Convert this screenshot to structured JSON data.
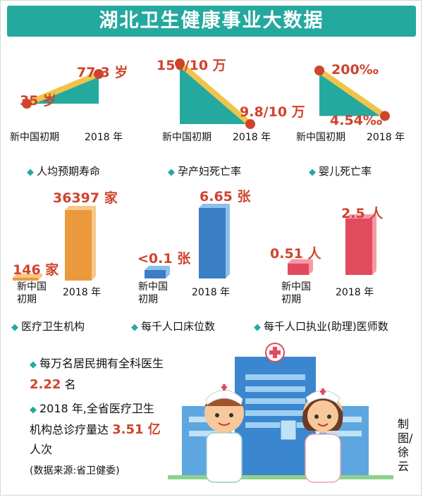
{
  "title": "湖北卫生健康事业大数据",
  "colors": {
    "teal": "#25a99f",
    "red": "#d0432d",
    "orange": "#ea9a3c",
    "blue": "#3a7fc4",
    "pink": "#e24a5e",
    "yellow": "#f0c44a"
  },
  "chart_data": [
    {
      "type": "line",
      "name": "人均预期寿命",
      "categories": [
        "新中国初期",
        "2018 年"
      ],
      "values": [
        35,
        77.3
      ],
      "value_labels": [
        "35 岁",
        "77.3 岁"
      ]
    },
    {
      "type": "line",
      "name": "孕产妇死亡率",
      "categories": [
        "新中国初期",
        "2018 年"
      ],
      "values": [
        150,
        9.8
      ],
      "value_labels": [
        "150/10 万",
        "9.8/10 万"
      ]
    },
    {
      "type": "line",
      "name": "婴儿死亡率",
      "categories": [
        "新中国初期",
        "2018 年"
      ],
      "values": [
        200,
        4.54
      ],
      "value_labels": [
        "200‰",
        "4.54‰"
      ]
    },
    {
      "type": "bar",
      "name": "医疗卫生机构",
      "categories": [
        "新中国初期",
        "2018 年"
      ],
      "values": [
        146,
        36397
      ],
      "value_labels": [
        "146 家",
        "36397 家"
      ]
    },
    {
      "type": "bar",
      "name": "每千人口床位数",
      "categories": [
        "新中国初期",
        "2018 年"
      ],
      "values": [
        0.1,
        6.65
      ],
      "value_labels": [
        "<0.1 张",
        "6.65 张"
      ]
    },
    {
      "type": "bar",
      "name": "每千人口执业(助理)医师数",
      "categories": [
        "新中国初期",
        "2018 年"
      ],
      "values": [
        0.51,
        2.5
      ],
      "value_labels": [
        "0.51 人",
        "2.5 人"
      ]
    }
  ],
  "cat_early": "新中国初期",
  "cat_early_line1": "新中国",
  "cat_early_line2": "初期",
  "cat_2018": "2018 年",
  "notes": {
    "gp_text": "每万名居民拥有全科医生",
    "gp_value": "2.22",
    "gp_unit": "名",
    "visits_text1": "2018 年,全省医疗卫生机构总诊疗量达",
    "visits_value": "3.51 亿",
    "visits_unit": "人次",
    "source": "(数据来源:省卫健委)"
  },
  "credit": "制图/徐云"
}
